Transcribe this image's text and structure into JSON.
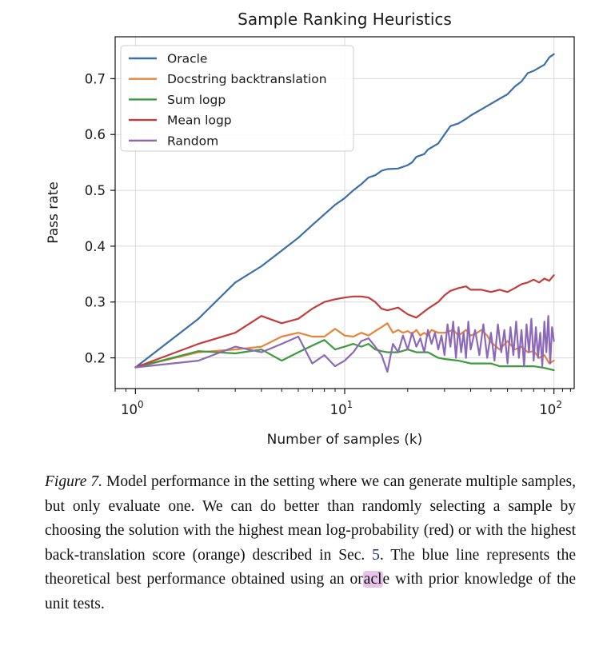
{
  "chart_data": {
    "type": "line",
    "title": "Sample Ranking Heuristics",
    "xlabel": "Number of samples (k)",
    "ylabel": "Pass rate",
    "xscale": "log",
    "xlim": [
      0.8,
      125
    ],
    "ylim": [
      0.145,
      0.775
    ],
    "yticks": [
      0.2,
      0.3,
      0.4,
      0.5,
      0.6,
      0.7
    ],
    "ytick_labels": [
      "0.2",
      "0.3",
      "0.4",
      "0.5",
      "0.6",
      "0.7"
    ],
    "xticks": [
      1,
      10,
      100
    ],
    "xtick_labels": [
      {
        "base": "10",
        "exp": "0"
      },
      {
        "base": "10",
        "exp": "1"
      },
      {
        "base": "10",
        "exp": "2"
      }
    ],
    "grid": true,
    "legend_position": "top-left",
    "series": [
      {
        "name": "Oracle",
        "color": "#3a6fa8",
        "x": [
          1,
          2,
          3,
          4,
          5,
          6,
          7,
          8,
          9,
          10,
          11,
          12,
          13,
          14,
          15,
          16,
          18,
          20,
          21,
          22,
          24,
          25,
          28,
          30,
          32,
          35,
          38,
          40,
          45,
          50,
          55,
          60,
          65,
          70,
          75,
          80,
          90,
          95,
          100
        ],
        "y": [
          0.183,
          0.27,
          0.335,
          0.364,
          0.392,
          0.415,
          0.438,
          0.457,
          0.474,
          0.486,
          0.5,
          0.511,
          0.523,
          0.527,
          0.535,
          0.538,
          0.539,
          0.545,
          0.55,
          0.56,
          0.565,
          0.573,
          0.584,
          0.6,
          0.615,
          0.62,
          0.628,
          0.634,
          0.645,
          0.655,
          0.664,
          0.672,
          0.686,
          0.695,
          0.71,
          0.714,
          0.725,
          0.738,
          0.744
        ]
      },
      {
        "name": "Docstring backtranslation",
        "color": "#e8843a",
        "x": [
          1,
          2,
          3,
          4,
          5,
          6,
          7,
          8,
          9,
          10,
          11,
          12,
          13,
          14,
          15,
          16,
          17,
          18,
          19,
          20,
          21,
          22,
          23,
          24,
          25,
          26,
          28,
          30,
          33,
          35,
          38,
          40,
          43,
          45,
          48,
          50,
          55,
          60,
          65,
          70,
          75,
          80,
          85,
          90,
          95,
          100
        ],
        "y": [
          0.183,
          0.21,
          0.215,
          0.22,
          0.238,
          0.245,
          0.238,
          0.238,
          0.252,
          0.24,
          0.238,
          0.245,
          0.24,
          0.248,
          0.255,
          0.262,
          0.245,
          0.25,
          0.245,
          0.248,
          0.243,
          0.25,
          0.24,
          0.245,
          0.24,
          0.25,
          0.245,
          0.245,
          0.25,
          0.24,
          0.25,
          0.24,
          0.245,
          0.25,
          0.24,
          0.228,
          0.215,
          0.23,
          0.215,
          0.22,
          0.21,
          0.212,
          0.2,
          0.205,
          0.19,
          0.195
        ]
      },
      {
        "name": "Sum logp",
        "color": "#3d9a3d",
        "x": [
          1,
          2,
          3,
          4,
          5,
          6,
          7,
          8,
          9,
          10,
          11,
          12,
          13,
          14,
          15,
          16,
          18,
          20,
          22,
          25,
          28,
          30,
          35,
          40,
          45,
          50,
          55,
          60,
          70,
          80,
          90,
          100
        ],
        "y": [
          0.183,
          0.212,
          0.208,
          0.215,
          0.195,
          0.21,
          0.222,
          0.232,
          0.215,
          0.22,
          0.225,
          0.22,
          0.225,
          0.215,
          0.212,
          0.21,
          0.21,
          0.215,
          0.21,
          0.21,
          0.2,
          0.198,
          0.195,
          0.19,
          0.19,
          0.19,
          0.185,
          0.185,
          0.185,
          0.185,
          0.182,
          0.178
        ]
      },
      {
        "name": "Mean logp",
        "color": "#c43b3b",
        "x": [
          1,
          2,
          3,
          4,
          5,
          6,
          7,
          8,
          9,
          10,
          11,
          12,
          13,
          14,
          15,
          16,
          18,
          20,
          22,
          25,
          28,
          30,
          32,
          35,
          38,
          40,
          45,
          50,
          55,
          60,
          65,
          70,
          75,
          80,
          85,
          90,
          95,
          100
        ],
        "y": [
          0.183,
          0.225,
          0.245,
          0.275,
          0.262,
          0.27,
          0.288,
          0.3,
          0.305,
          0.308,
          0.31,
          0.31,
          0.308,
          0.3,
          0.288,
          0.285,
          0.29,
          0.278,
          0.272,
          0.288,
          0.3,
          0.312,
          0.32,
          0.325,
          0.328,
          0.322,
          0.322,
          0.318,
          0.322,
          0.318,
          0.325,
          0.332,
          0.335,
          0.34,
          0.335,
          0.342,
          0.338,
          0.348
        ]
      },
      {
        "name": "Random",
        "color": "#8b68b8",
        "x": [
          1,
          2,
          3,
          4,
          5,
          6,
          7,
          8,
          9,
          10,
          11,
          12,
          13,
          14,
          15,
          16,
          17,
          18,
          19,
          20,
          21,
          22,
          23,
          24,
          25,
          26,
          27,
          28,
          29,
          30,
          31,
          32,
          33,
          34,
          35,
          36,
          37,
          38,
          39,
          40,
          42,
          44,
          46,
          48,
          50,
          52,
          54,
          56,
          58,
          60,
          62,
          64,
          66,
          68,
          70,
          72,
          74,
          76,
          78,
          80,
          82,
          84,
          86,
          88,
          90,
          92,
          94,
          96,
          98,
          100
        ],
        "y": [
          0.183,
          0.195,
          0.22,
          0.21,
          0.225,
          0.238,
          0.19,
          0.205,
          0.185,
          0.195,
          0.21,
          0.23,
          0.235,
          0.22,
          0.205,
          0.175,
          0.225,
          0.21,
          0.24,
          0.215,
          0.245,
          0.22,
          0.235,
          0.21,
          0.25,
          0.225,
          0.245,
          0.215,
          0.24,
          0.205,
          0.26,
          0.22,
          0.265,
          0.2,
          0.255,
          0.21,
          0.245,
          0.2,
          0.265,
          0.215,
          0.25,
          0.205,
          0.26,
          0.2,
          0.245,
          0.195,
          0.26,
          0.21,
          0.25,
          0.19,
          0.255,
          0.205,
          0.265,
          0.2,
          0.25,
          0.185,
          0.26,
          0.21,
          0.27,
          0.195,
          0.255,
          0.2,
          0.245,
          0.185,
          0.265,
          0.21,
          0.275,
          0.19,
          0.255,
          0.23
        ]
      }
    ]
  },
  "caption": {
    "label": "Figure 7.",
    "text_1": " Model performance in the setting where we can generate multiple samples, but only evaluate one. We can do better than randomly selecting a sample by choosing the solution with the highest mean log-probability (red) or with the highest back-translation score (orange) described in Sec. ",
    "ref": "5",
    "text_2": ". The blue line represents the theoretical best performance obtained using an ",
    "highlight_pre": "or",
    "highlight": "acl",
    "highlight_post": "e with prior knowledge of the unit tests."
  }
}
